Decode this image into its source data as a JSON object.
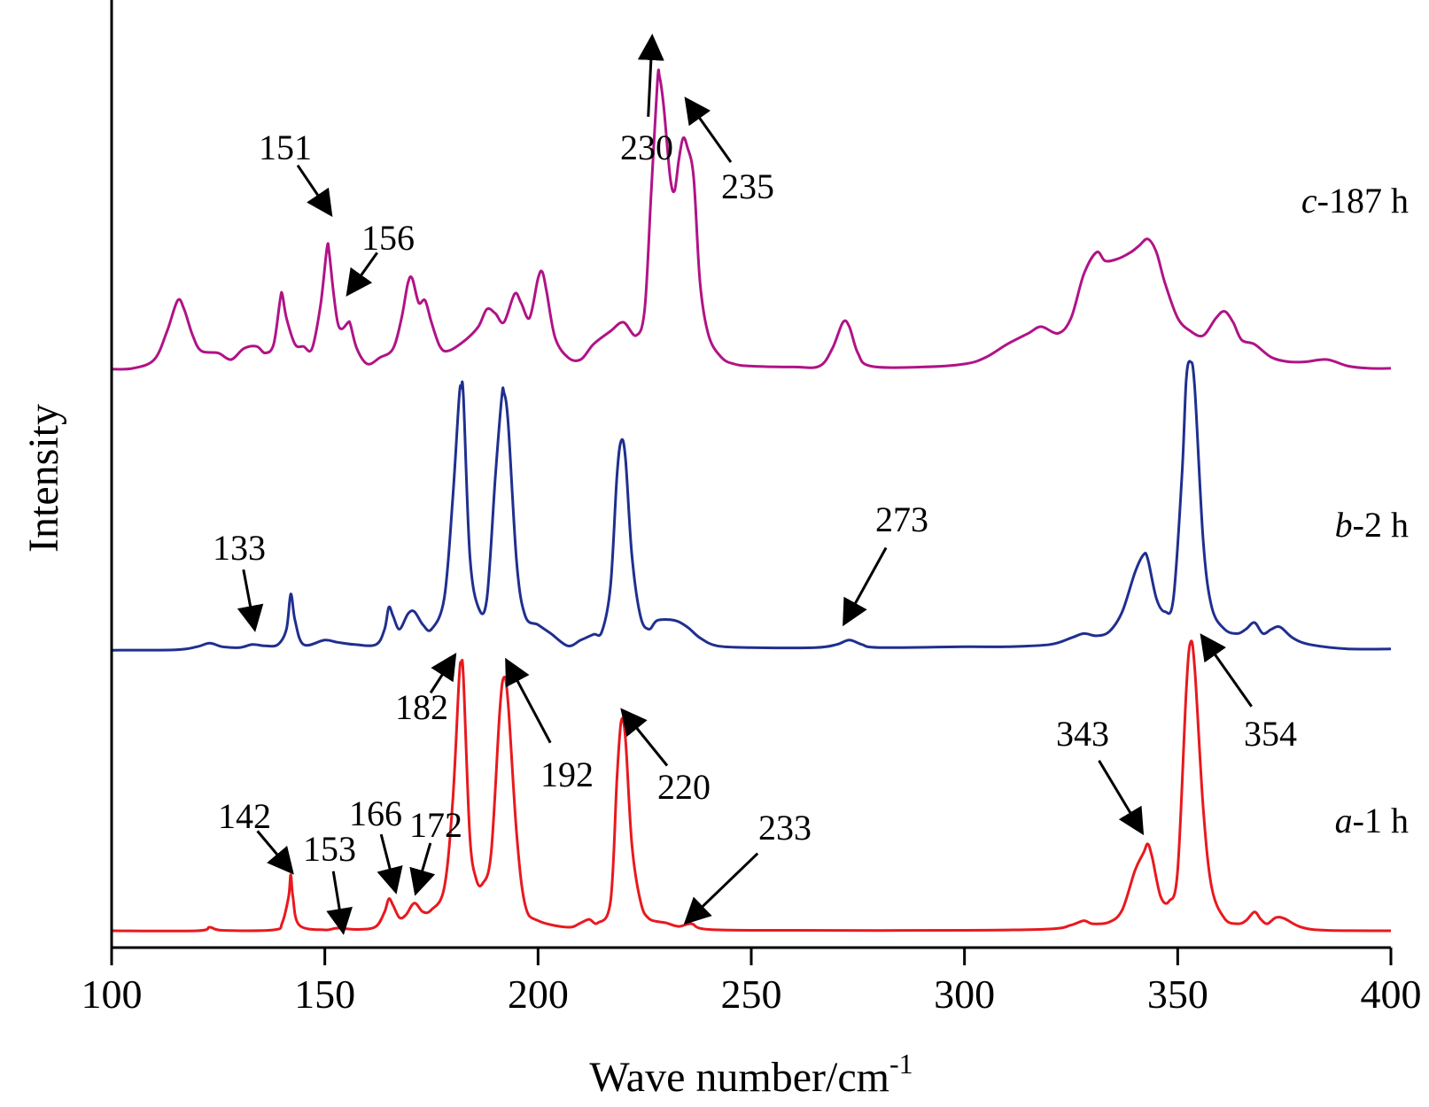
{
  "chart_data": {
    "type": "line",
    "xlabel": "Wave number/cm",
    "xlabel_superscript": "-1",
    "ylabel": "Intensity",
    "xlim": [
      100,
      400
    ],
    "x_ticks": [
      "100",
      "150",
      "200",
      "250",
      "300",
      "350",
      "400"
    ],
    "y_ticks_visible": false,
    "grid": false,
    "series": [
      {
        "label_italic": "a",
        "label_rest": "-1 h",
        "color": "#e8191e",
        "offset": 0,
        "points": [
          [
            100,
            0.2
          ],
          [
            120,
            0.2
          ],
          [
            123,
            1.0
          ],
          [
            126,
            0.3
          ],
          [
            138,
            0.4
          ],
          [
            140,
            2.0
          ],
          [
            141.5,
            8.0
          ],
          [
            142,
            13.0
          ],
          [
            142.5,
            8.0
          ],
          [
            144,
            1.5
          ],
          [
            150,
            0.4
          ],
          [
            153,
            0.8
          ],
          [
            158,
            0.5
          ],
          [
            162,
            1.2
          ],
          [
            164,
            4.5
          ],
          [
            165,
            7.5
          ],
          [
            166,
            6.0
          ],
          [
            167.5,
            3.2
          ],
          [
            169,
            3.8
          ],
          [
            171,
            6.5
          ],
          [
            173,
            4.5
          ],
          [
            175,
            5.0
          ],
          [
            178,
            10.0
          ],
          [
            180,
            30.0
          ],
          [
            181.5,
            58.0
          ],
          [
            182,
            61.0
          ],
          [
            182.5,
            58.0
          ],
          [
            184,
            22.0
          ],
          [
            185.5,
            12.0
          ],
          [
            187,
            11.0
          ],
          [
            189,
            18.0
          ],
          [
            191,
            50.0
          ],
          [
            192,
            58.0
          ],
          [
            193,
            52.0
          ],
          [
            195,
            22.0
          ],
          [
            197,
            6.0
          ],
          [
            200,
            2.5
          ],
          [
            207,
            1.0
          ],
          [
            210,
            2.0
          ],
          [
            212,
            2.8
          ],
          [
            214,
            2.0
          ],
          [
            217,
            7.0
          ],
          [
            218.5,
            35.0
          ],
          [
            219.5,
            48.0
          ],
          [
            220.5,
            44.0
          ],
          [
            222,
            20.0
          ],
          [
            224,
            7.0
          ],
          [
            226,
            3.0
          ],
          [
            230,
            2.0
          ],
          [
            233,
            1.2
          ],
          [
            236,
            1.8
          ],
          [
            240,
            0.5
          ],
          [
            260,
            0.3
          ],
          [
            300,
            0.3
          ],
          [
            320,
            0.6
          ],
          [
            325,
            1.5
          ],
          [
            328,
            2.5
          ],
          [
            330,
            1.8
          ],
          [
            334,
            2.2
          ],
          [
            337,
            5.0
          ],
          [
            340,
            14.0
          ],
          [
            342,
            18.0
          ],
          [
            343,
            20.0
          ],
          [
            344,
            17.0
          ],
          [
            346,
            8.0
          ],
          [
            348,
            7.0
          ],
          [
            350,
            14.0
          ],
          [
            352,
            55.0
          ],
          [
            353,
            66.0
          ],
          [
            354,
            60.0
          ],
          [
            356,
            28.0
          ],
          [
            358,
            10.0
          ],
          [
            361,
            3.0
          ],
          [
            364,
            1.8
          ],
          [
            366,
            2.5
          ],
          [
            368,
            4.5
          ],
          [
            369.5,
            2.8
          ],
          [
            371,
            1.8
          ],
          [
            373,
            3.2
          ],
          [
            375,
            3.0
          ],
          [
            379,
            1.0
          ],
          [
            385,
            0.3
          ],
          [
            400,
            0.2
          ]
        ]
      },
      {
        "label_italic": "b",
        "label_rest": "-2 h",
        "color": "#1f2f8f",
        "offset": 64,
        "points": [
          [
            100,
            0.2
          ],
          [
            115,
            0.3
          ],
          [
            120,
            1.0
          ],
          [
            123,
            1.8
          ],
          [
            126,
            1.0
          ],
          [
            130,
            0.8
          ],
          [
            133,
            1.5
          ],
          [
            136,
            1.2
          ],
          [
            139,
            1.5
          ],
          [
            141,
            5.0
          ],
          [
            142,
            13.0
          ],
          [
            143,
            7.0
          ],
          [
            145,
            1.5
          ],
          [
            150,
            2.5
          ],
          [
            153,
            2.0
          ],
          [
            157,
            1.5
          ],
          [
            162,
            1.5
          ],
          [
            164,
            5.0
          ],
          [
            165,
            10.0
          ],
          [
            166,
            8.0
          ],
          [
            167.5,
            5.0
          ],
          [
            169.5,
            8.5
          ],
          [
            171,
            9.0
          ],
          [
            173,
            6.0
          ],
          [
            175,
            5.0
          ],
          [
            178,
            12.0
          ],
          [
            180,
            35.0
          ],
          [
            181.5,
            58.0
          ],
          [
            182,
            60.0
          ],
          [
            182.5,
            58.0
          ],
          [
            184,
            22.0
          ],
          [
            186,
            10.0
          ],
          [
            188,
            12.0
          ],
          [
            190,
            40.0
          ],
          [
            191.5,
            58.0
          ],
          [
            192,
            59.0
          ],
          [
            193,
            52.0
          ],
          [
            195,
            20.0
          ],
          [
            197,
            8.0
          ],
          [
            200,
            6.0
          ],
          [
            203,
            4.0
          ],
          [
            207,
            1.2
          ],
          [
            210,
            2.5
          ],
          [
            213,
            3.8
          ],
          [
            215,
            4.5
          ],
          [
            217,
            15.0
          ],
          [
            218.5,
            40.0
          ],
          [
            219.5,
            48.0
          ],
          [
            220.5,
            44.0
          ],
          [
            222,
            22.0
          ],
          [
            224,
            8.0
          ],
          [
            226,
            5.0
          ],
          [
            228,
            7.0
          ],
          [
            232,
            7.0
          ],
          [
            235,
            5.5
          ],
          [
            238,
            3.0
          ],
          [
            242,
            1.2
          ],
          [
            250,
            0.8
          ],
          [
            265,
            0.8
          ],
          [
            270,
            1.5
          ],
          [
            273,
            2.5
          ],
          [
            276,
            1.5
          ],
          [
            280,
            0.8
          ],
          [
            300,
            1.0
          ],
          [
            310,
            1.0
          ],
          [
            320,
            1.5
          ],
          [
            325,
            3.0
          ],
          [
            328,
            4.0
          ],
          [
            331,
            3.5
          ],
          [
            334,
            4.5
          ],
          [
            337,
            9.0
          ],
          [
            340,
            18.0
          ],
          [
            342,
            22.0
          ],
          [
            343,
            21.0
          ],
          [
            345,
            12.0
          ],
          [
            347,
            9.0
          ],
          [
            349,
            12.0
          ],
          [
            351,
            40.0
          ],
          [
            352,
            62.0
          ],
          [
            353,
            66.0
          ],
          [
            354,
            60.0
          ],
          [
            356,
            25.0
          ],
          [
            358,
            10.0
          ],
          [
            361,
            5.0
          ],
          [
            364,
            4.0
          ],
          [
            366,
            5.0
          ],
          [
            368,
            6.5
          ],
          [
            370,
            4.0
          ],
          [
            372,
            5.0
          ],
          [
            374,
            5.5
          ],
          [
            377,
            3.0
          ],
          [
            381,
            1.5
          ],
          [
            390,
            0.5
          ],
          [
            400,
            0.5
          ]
        ]
      },
      {
        "label_italic": "c",
        "label_rest": "-187 h",
        "color": "#b01386",
        "offset": 128,
        "points": [
          [
            100,
            0.3
          ],
          [
            105,
            0.5
          ],
          [
            110,
            2.5
          ],
          [
            113,
            9.0
          ],
          [
            115.5,
            16.0
          ],
          [
            117,
            14.0
          ],
          [
            119,
            8.0
          ],
          [
            121,
            4.5
          ],
          [
            125,
            4.0
          ],
          [
            128,
            2.5
          ],
          [
            131,
            5.0
          ],
          [
            134,
            5.5
          ],
          [
            136,
            4.0
          ],
          [
            138,
            6.0
          ],
          [
            139.5,
            16.0
          ],
          [
            140,
            17.5
          ],
          [
            141,
            12.0
          ],
          [
            143,
            6.0
          ],
          [
            145,
            5.5
          ],
          [
            147,
            5.0
          ],
          [
            149,
            15.0
          ],
          [
            150.5,
            28.0
          ],
          [
            151,
            27.0
          ],
          [
            152,
            18.0
          ],
          [
            153,
            11.0
          ],
          [
            154,
            9.5
          ],
          [
            155.5,
            11.0
          ],
          [
            156,
            10.5
          ],
          [
            157.5,
            5.0
          ],
          [
            160,
            1.5
          ],
          [
            163,
            3.0
          ],
          [
            166,
            5.0
          ],
          [
            168,
            12.0
          ],
          [
            169.5,
            20.0
          ],
          [
            170.5,
            21.0
          ],
          [
            172,
            15.5
          ],
          [
            173.5,
            16.0
          ],
          [
            175,
            11.0
          ],
          [
            177,
            5.5
          ],
          [
            179,
            4.5
          ],
          [
            183,
            7.0
          ],
          [
            186,
            10.0
          ],
          [
            188,
            14.0
          ],
          [
            190,
            13.0
          ],
          [
            192,
            11.0
          ],
          [
            194.5,
            17.5
          ],
          [
            196,
            15.5
          ],
          [
            198,
            12.0
          ],
          [
            200,
            21.0
          ],
          [
            201,
            22.5
          ],
          [
            202,
            18.0
          ],
          [
            204,
            7.5
          ],
          [
            207,
            3.0
          ],
          [
            210,
            2.5
          ],
          [
            213,
            6.0
          ],
          [
            217,
            9.0
          ],
          [
            220,
            11.0
          ],
          [
            223,
            8.0
          ],
          [
            225,
            14.0
          ],
          [
            226.5,
            40.0
          ],
          [
            228,
            66.0
          ],
          [
            228.5,
            67.0
          ],
          [
            229.5,
            60.0
          ],
          [
            231,
            44.0
          ],
          [
            232,
            41.0
          ],
          [
            233,
            48.0
          ],
          [
            234,
            53.0
          ],
          [
            235,
            51.0
          ],
          [
            236.5,
            44.0
          ],
          [
            238,
            20.0
          ],
          [
            240,
            8.0
          ],
          [
            243,
            3.0
          ],
          [
            246,
            1.5
          ],
          [
            250,
            1.0
          ],
          [
            260,
            0.8
          ],
          [
            266,
            1.0
          ],
          [
            269,
            5.0
          ],
          [
            271.5,
            11.0
          ],
          [
            273,
            10.0
          ],
          [
            275,
            4.0
          ],
          [
            278,
            1.0
          ],
          [
            290,
            0.8
          ],
          [
            300,
            1.5
          ],
          [
            305,
            3.0
          ],
          [
            310,
            6.0
          ],
          [
            315,
            8.5
          ],
          [
            318,
            10.0
          ],
          [
            322,
            8.5
          ],
          [
            325,
            12.0
          ],
          [
            328,
            22.0
          ],
          [
            331,
            27.0
          ],
          [
            333,
            25.0
          ],
          [
            336,
            25.5
          ],
          [
            339,
            27.0
          ],
          [
            341,
            28.5
          ],
          [
            343,
            30.0
          ],
          [
            345,
            27.0
          ],
          [
            347,
            20.0
          ],
          [
            350,
            12.0
          ],
          [
            353,
            9.0
          ],
          [
            356,
            8.0
          ],
          [
            359,
            12.0
          ],
          [
            361,
            13.5
          ],
          [
            363,
            11.0
          ],
          [
            365,
            7.0
          ],
          [
            368,
            6.0
          ],
          [
            372,
            3.0
          ],
          [
            376,
            2.0
          ],
          [
            380,
            2.0
          ],
          [
            385,
            2.5
          ],
          [
            390,
            1.0
          ],
          [
            395,
            0.5
          ],
          [
            400,
            0.5
          ]
        ]
      }
    ],
    "annotations": [
      {
        "text": "142",
        "series": 0,
        "x": 142
      },
      {
        "text": "153",
        "series": 0,
        "x": 153
      },
      {
        "text": "166",
        "series": 0,
        "x": 165
      },
      {
        "text": "172",
        "series": 0,
        "x": 171
      },
      {
        "text": "182",
        "series": 0,
        "x": 182
      },
      {
        "text": "192",
        "series": 0,
        "x": 192
      },
      {
        "text": "220",
        "series": 0,
        "x": 220
      },
      {
        "text": "233",
        "series": 0,
        "x": 236
      },
      {
        "text": "343",
        "series": 0,
        "x": 343
      },
      {
        "text": "354",
        "series": 0,
        "x": 354
      },
      {
        "text": "133",
        "series": 1,
        "x": 133
      },
      {
        "text": "273",
        "series": 1,
        "x": 273
      },
      {
        "text": "151",
        "series": 2,
        "x": 151
      },
      {
        "text": "156",
        "series": 2,
        "x": 156
      },
      {
        "text": "230",
        "series": 2,
        "x": 228
      },
      {
        "text": "235",
        "series": 2,
        "x": 234
      }
    ]
  }
}
